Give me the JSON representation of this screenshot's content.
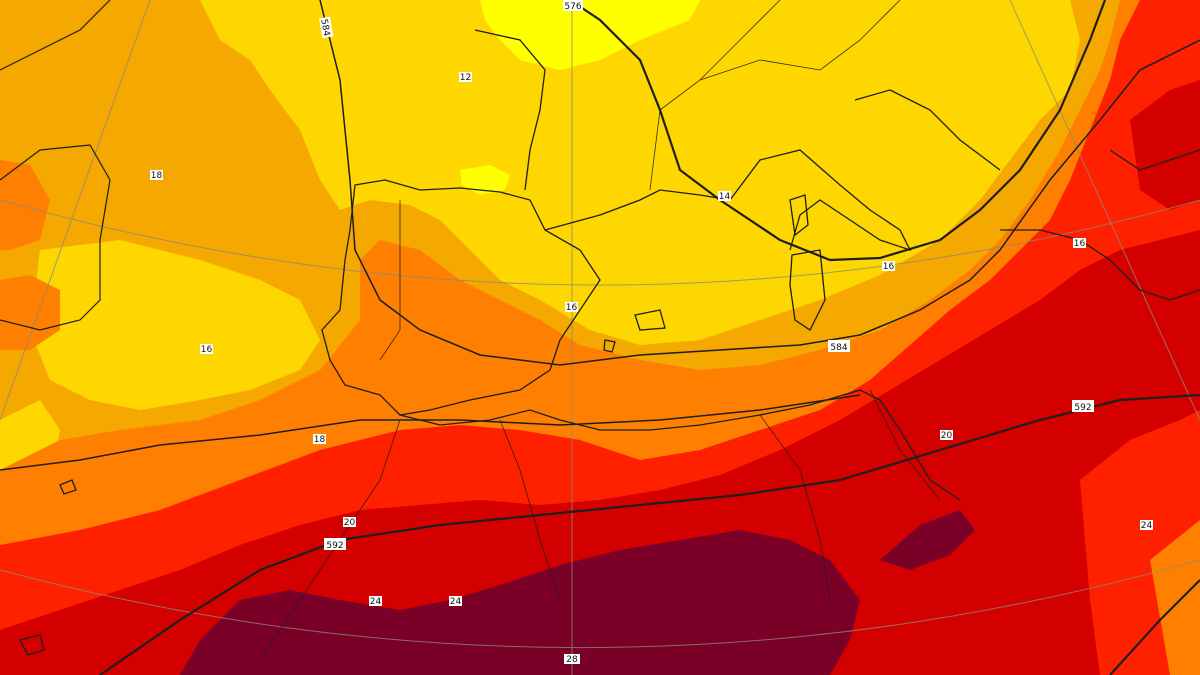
{
  "map": {
    "colors": {
      "band_14_16": "#ffff00",
      "band_16_18": "#ffd700",
      "band_18_20": "#f5a800",
      "band_20_22": "#ff8000",
      "band_22_24": "#ff2000",
      "band_24_26": "#d40000",
      "band_26_plus": "#7a0028",
      "coast": "#1e1e1e",
      "graticule": "#8a8a7a"
    },
    "contour_labels": {
      "geopotential": [
        "576",
        "584",
        "584",
        "592",
        "592"
      ],
      "temperature": [
        "12",
        "14",
        "16",
        "16",
        "16",
        "16",
        "18",
        "18",
        "20",
        "20",
        "24",
        "24",
        "24",
        "28"
      ]
    }
  }
}
